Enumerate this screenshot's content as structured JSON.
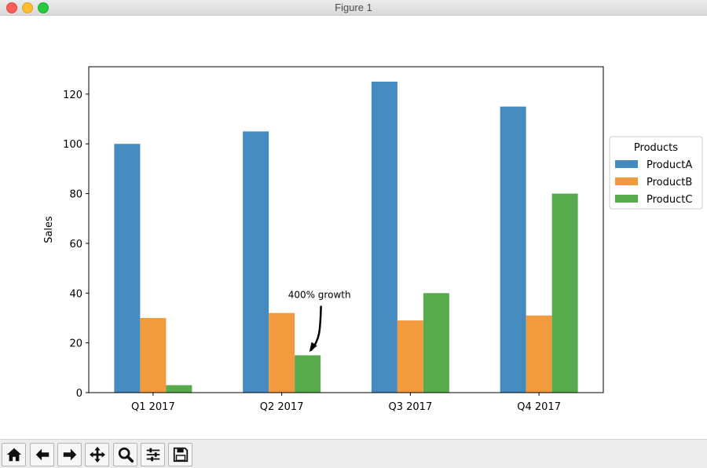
{
  "window": {
    "title": "Figure 1"
  },
  "toolbar": {
    "buttons": [
      {
        "name": "home-button",
        "icon": "home-icon"
      },
      {
        "name": "back-button",
        "icon": "arrow-left-icon"
      },
      {
        "name": "forward-button",
        "icon": "arrow-right-icon"
      },
      {
        "name": "pan-button",
        "icon": "move-icon"
      },
      {
        "name": "zoom-button",
        "icon": "magnifier-icon"
      },
      {
        "name": "configure-subplots-button",
        "icon": "sliders-icon"
      },
      {
        "name": "save-button",
        "icon": "floppy-disk-icon"
      }
    ]
  },
  "chart_data": {
    "type": "bar",
    "categories": [
      "Q1 2017",
      "Q2 2017",
      "Q3 2017",
      "Q4 2017"
    ],
    "series": [
      {
        "name": "ProductA",
        "values": [
          100,
          105,
          125,
          115
        ],
        "color": "#468bc0"
      },
      {
        "name": "ProductB",
        "values": [
          30,
          32,
          29,
          31
        ],
        "color": "#f29a3e"
      },
      {
        "name": "ProductC",
        "values": [
          3,
          15,
          40,
          80
        ],
        "color": "#58ab4c"
      }
    ],
    "title": "",
    "xlabel": "",
    "ylabel": "Sales",
    "ylim": [
      0,
      131
    ],
    "yticks": [
      0,
      20,
      40,
      60,
      80,
      100,
      120
    ],
    "grid": false,
    "legend": {
      "title": "Products",
      "placement": "outside-right"
    },
    "annotations": [
      {
        "text": "400% growth",
        "target_category": "Q2 2017",
        "target_series": "ProductC",
        "target_value": 15
      }
    ]
  }
}
